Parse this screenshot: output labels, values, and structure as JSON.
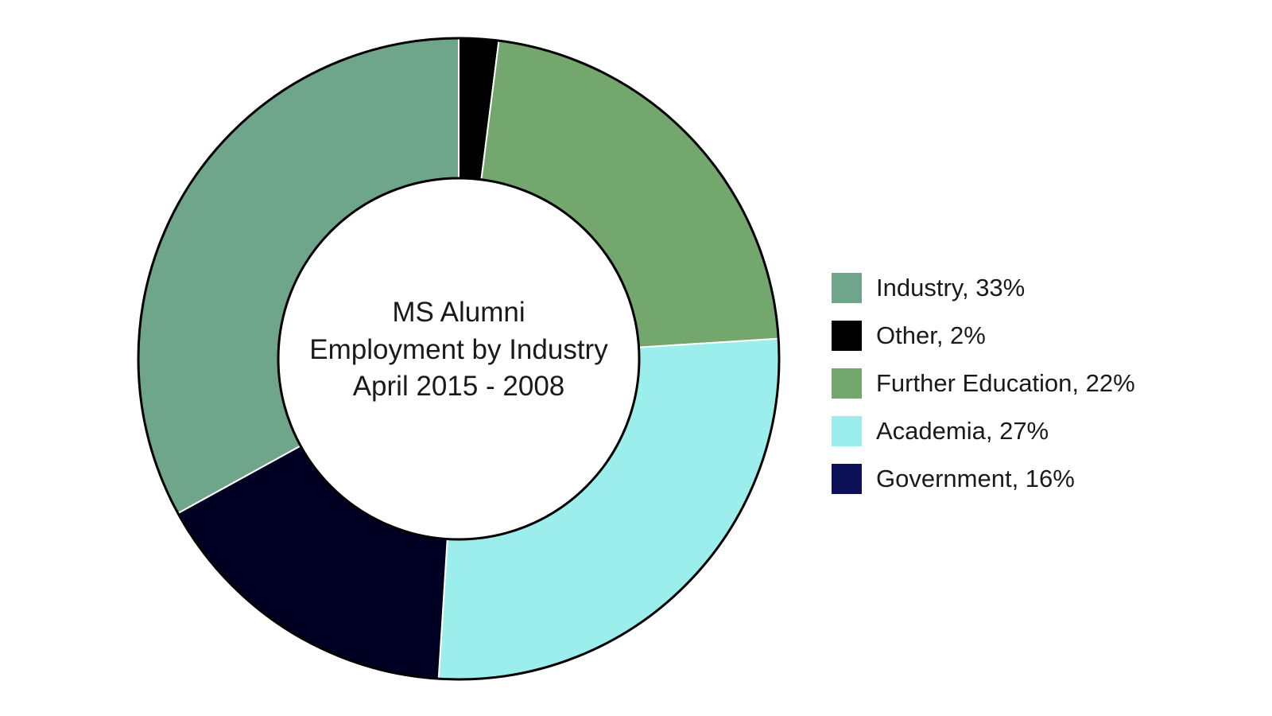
{
  "chart_data": {
    "type": "pie",
    "variant": "donut",
    "title_lines": [
      "MS Alumni",
      "Employment by Industry",
      "April 2015 - 2008"
    ],
    "slices": [
      {
        "label": "Industry",
        "value": 33,
        "legend": "Industry, 33%",
        "color": "#6fa58b"
      },
      {
        "label": "Other",
        "value": 2,
        "legend": "Other, 2%",
        "color": "#000000"
      },
      {
        "label": "Further Education",
        "value": 22,
        "legend": "Further Education, 22%",
        "color": "#74a76d"
      },
      {
        "label": "Academia",
        "value": 27,
        "legend": "Academia, 27%",
        "color": "#9ceeed"
      },
      {
        "label": "Government",
        "value": 16,
        "legend": "Government, 16%",
        "color": "#000022",
        "legend_color": "#0c1157"
      }
    ],
    "draw_order": [
      "Other",
      "Further Education",
      "Academia",
      "Government",
      "Industry"
    ],
    "legend_position": "right"
  }
}
